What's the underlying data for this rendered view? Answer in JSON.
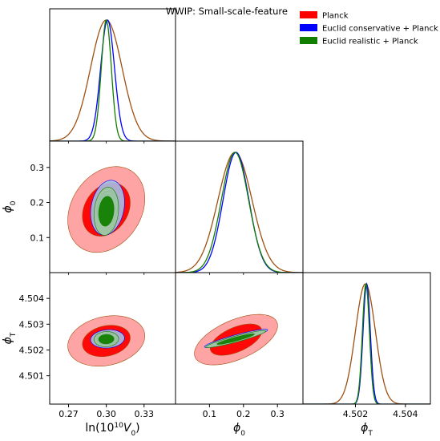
{
  "chart_data": {
    "type": "triangle-plot",
    "title": "WWIP: Small-scale-feature",
    "legend": {
      "placement": "top-right",
      "entries": [
        {
          "name": "Planck",
          "color": "#ff0000"
        },
        {
          "name": "Euclid conservative + Planck",
          "color": "#0000ff"
        },
        {
          "name": "Euclid realistic + Planck",
          "color": "#127e00"
        }
      ]
    },
    "parameters": [
      {
        "key": "lnV0",
        "label": "ln(10",
        "label_sup": "10",
        "label_rest": "V",
        "label_sub": "0",
        "label_end": ")",
        "range": [
          0.255,
          0.355
        ],
        "ticks": [
          0.27,
          0.3,
          0.33
        ],
        "tick_labels": [
          "0.27",
          "0.30",
          "0.33"
        ]
      },
      {
        "key": "phi0",
        "label": "ϕ",
        "label_sub": "0",
        "range": [
          0.0,
          0.375
        ],
        "ticks": [
          0.1,
          0.2,
          0.3
        ],
        "tick_labels": [
          "0.1",
          "0.2",
          "0.3"
        ]
      },
      {
        "key": "phiT",
        "label": "ϕ",
        "label_sub": "T",
        "range": [
          4.5,
          4.5051
        ],
        "ticks": [
          4.5011,
          4.5021,
          4.5031,
          4.5041
        ],
        "tick_labels": [
          "4.501",
          "4.502",
          "4.503",
          "4.504"
        ],
        "x_ticks": [
          4.5021,
          4.5041
        ],
        "x_tick_labels": [
          "4.502",
          "4.504"
        ]
      }
    ],
    "series": [
      {
        "name": "Planck",
        "line_color": "#a05010",
        "fill_color_1sigma": "#ff0000",
        "fill_color_2sigma": "#ff9a9a",
        "marginals": {
          "lnV0": {
            "mean": 0.3,
            "sigma": 0.0125
          },
          "phi0": {
            "mean": 0.175,
            "sigma": 0.05
          },
          "phiT": {
            "mean": 4.5025,
            "sigma": 0.0004
          }
        },
        "contours": {
          "phi0_vs_lnV0": {
            "cx": 0.3,
            "cy": 0.18,
            "sx": 0.0125,
            "sy": 0.05,
            "rho": 0.25
          },
          "phiT_vs_lnV0": {
            "cx": 0.3,
            "cy": 4.50245,
            "sx": 0.0125,
            "sy": 0.0004,
            "rho": 0.2
          },
          "phiT_vs_phi0": {
            "cx": 0.178,
            "cy": 4.5025,
            "sx": 0.05,
            "sy": 0.0004,
            "rho": 0.55
          }
        }
      },
      {
        "name": "Euclid conservative + Planck",
        "line_color": "#0000ff",
        "fill_color_1sigma": "#7e9ad0",
        "fill_color_2sigma": "#a4c0e8",
        "marginals": {
          "lnV0": {
            "mean": 0.301,
            "sigma": 0.0055
          },
          "phi0": {
            "mean": 0.178,
            "sigma": 0.038
          },
          "phiT": {
            "mean": 4.50255,
            "sigma": 0.000145
          }
        },
        "contours": {
          "phi0_vs_lnV0": {
            "cx": 0.301,
            "cy": 0.185,
            "sx": 0.0055,
            "sy": 0.032,
            "rho": 0.2
          },
          "phiT_vs_lnV0": {
            "cx": 0.301,
            "cy": 4.50253,
            "sx": 0.0055,
            "sy": 0.000145,
            "rho": 0.1
          },
          "phiT_vs_phi0": {
            "cx": 0.178,
            "cy": 4.50255,
            "sx": 0.038,
            "sy": 0.000145,
            "rho": 0.92
          }
        }
      },
      {
        "name": "Euclid realistic + Planck",
        "line_color": "#127e00",
        "fill_color_1sigma": "#127e00",
        "fill_color_2sigma": "#9ec89e",
        "marginals": {
          "lnV0": {
            "mean": 0.3,
            "sigma": 0.004
          },
          "phi0": {
            "mean": 0.175,
            "sigma": 0.04
          },
          "phiT": {
            "mean": 4.50252,
            "sigma": 0.00014
          }
        },
        "contours": {
          "phi0_vs_lnV0": {
            "cx": 0.3,
            "cy": 0.175,
            "sx": 0.004,
            "sy": 0.028,
            "rho": 0.15
          },
          "phiT_vs_lnV0": {
            "cx": 0.3,
            "cy": 4.50252,
            "sx": 0.004,
            "sy": 0.00012,
            "rho": 0.05
          },
          "phiT_vs_phi0": {
            "cx": 0.177,
            "cy": 4.50252,
            "sx": 0.036,
            "sy": 0.000135,
            "rho": 0.93
          }
        }
      }
    ],
    "grid": false
  }
}
